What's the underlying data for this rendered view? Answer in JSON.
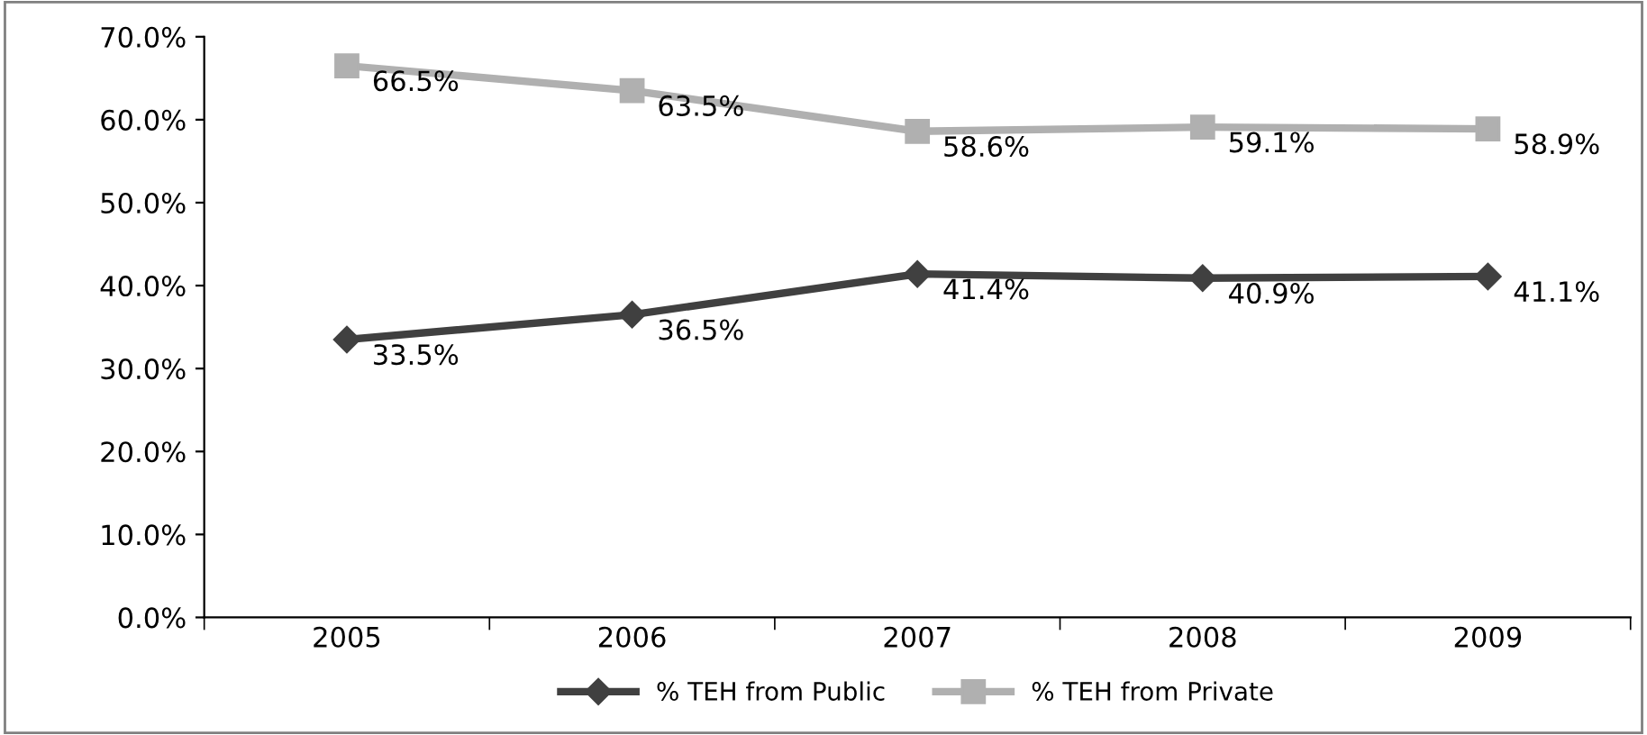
{
  "chart_data": {
    "type": "line",
    "categories": [
      "2005",
      "2006",
      "2007",
      "2008",
      "2009"
    ],
    "series": [
      {
        "name": "% TEH from Public",
        "color": "#404040",
        "marker": "diamond",
        "values": [
          33.5,
          36.5,
          41.4,
          40.9,
          41.1
        ],
        "value_labels": [
          "33.5%",
          "36.5%",
          "41.4%",
          "40.9%",
          "41.1%"
        ]
      },
      {
        "name": "% TEH from Private",
        "color": "#b0b0b0",
        "marker": "square",
        "values": [
          66.5,
          63.5,
          58.6,
          59.1,
          58.9
        ],
        "value_labels": [
          "66.5%",
          "63.5%",
          "58.6%",
          "59.1%",
          "58.9%"
        ]
      }
    ],
    "ylim": [
      0,
      70
    ],
    "yticks": [
      {
        "value": 0,
        "label": "0.0%"
      },
      {
        "value": 10,
        "label": "10.0%"
      },
      {
        "value": 20,
        "label": "20.0%"
      },
      {
        "value": 30,
        "label": "30.0%"
      },
      {
        "value": 40,
        "label": "40.0%"
      },
      {
        "value": 50,
        "label": "50.0%"
      },
      {
        "value": 60,
        "label": "60.0%"
      },
      {
        "value": 70,
        "label": "70.0%"
      }
    ],
    "grid": false,
    "legend": "bottom",
    "line_style": "solid"
  }
}
